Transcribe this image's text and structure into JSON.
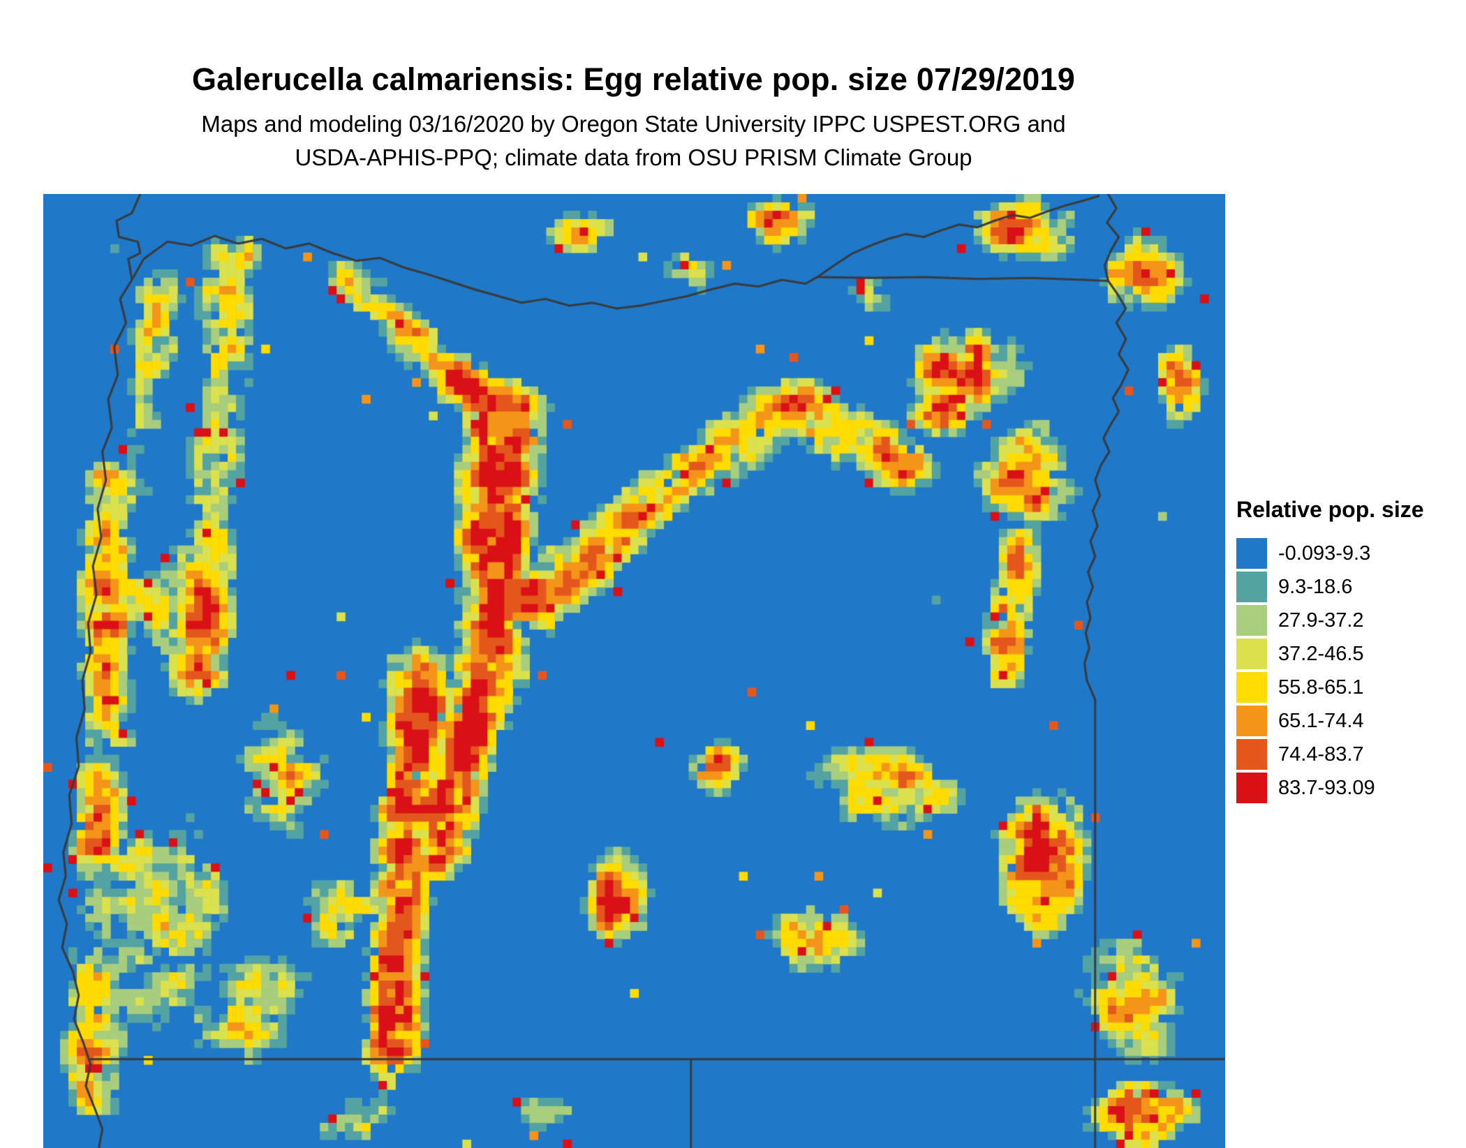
{
  "header": {
    "title": "Galerucella calmariensis: Egg relative pop. size 07/29/2019",
    "subtitle_line1": "Maps and modeling 03/16/2020 by Oregon State University IPPC USPEST.ORG and",
    "subtitle_line2": "USDA-APHIS-PPQ; climate data from OSU PRISM Climate Group"
  },
  "chart_data": {
    "type": "heatmap",
    "title": "Galerucella calmariensis: Egg relative pop. size 07/29/2019",
    "geography": "Oregon, USA",
    "legend_title": "Relative pop. size",
    "value_range": [
      -0.093,
      93.09
    ],
    "legend_position": "right",
    "map_background_color": "#1F78C8",
    "border_line_color": "#3A3A3A",
    "bins": [
      {
        "label": "-0.093-9.3",
        "color": "#1F78C8"
      },
      {
        "label": "9.3-18.6",
        "color": "#54A3A3"
      },
      {
        "label": "27.9-37.2",
        "color": "#A8CE7D"
      },
      {
        "label": "37.2-46.5",
        "color": "#DBE14D"
      },
      {
        "label": "55.8-65.1",
        "color": "#FFDB00"
      },
      {
        "label": "65.1-74.4",
        "color": "#F49519"
      },
      {
        "label": "74.4-83.7",
        "color": "#E4571C"
      },
      {
        "label": "83.7-93.09",
        "color": "#DB1016"
      }
    ]
  }
}
